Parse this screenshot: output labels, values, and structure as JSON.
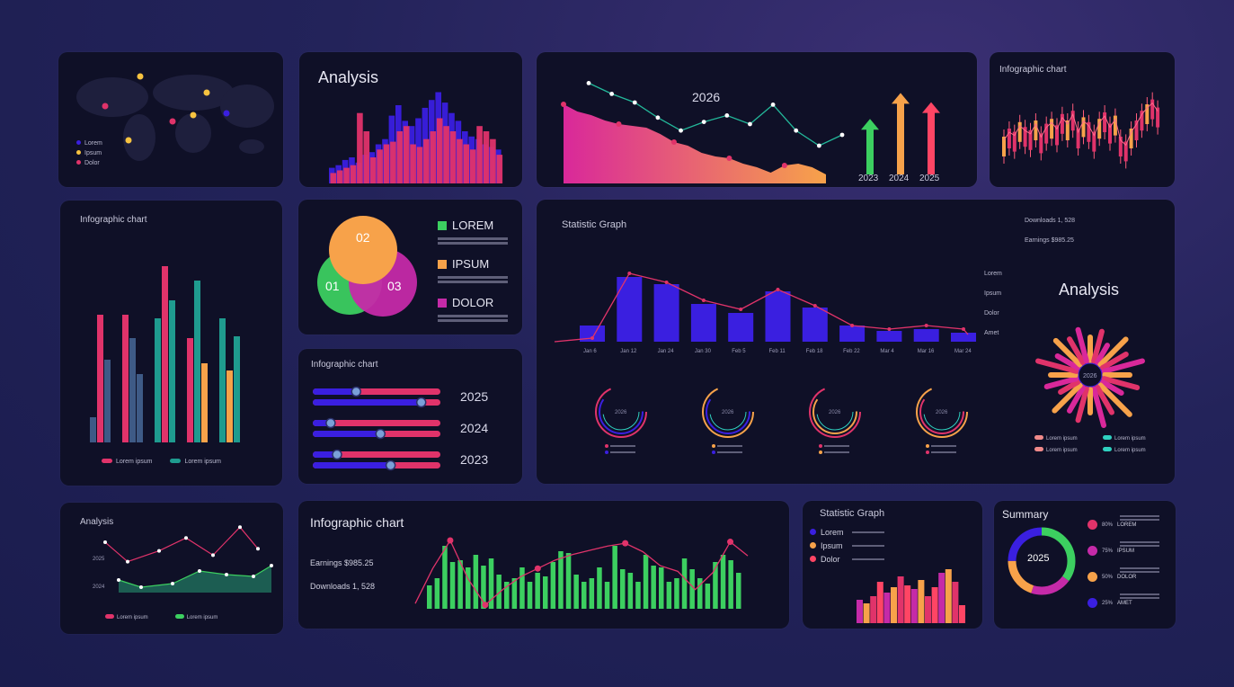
{
  "colors": {
    "pink": "#e0336a",
    "blue": "#3a1fe0",
    "orange": "#f7a24a",
    "green": "#3ccf60",
    "magenta": "#c52aa8",
    "teal": "#1f9b8f",
    "slate": "#3e5a86",
    "red": "#ff4564"
  },
  "map_panel": {
    "legend": [
      "Lorem",
      "Ipsum",
      "Dolor"
    ]
  },
  "analysis_top": {
    "title": "Analysis",
    "chart_data": {
      "type": "bar",
      "series": [
        {
          "color": "blue",
          "values": [
            12,
            14,
            18,
            20,
            16,
            22,
            24,
            30,
            34,
            52,
            60,
            48,
            44,
            50,
            58,
            64,
            70,
            62,
            54,
            48,
            40,
            36,
            34,
            30,
            28,
            26
          ]
        },
        {
          "color": "pink",
          "values": [
            8,
            10,
            12,
            14,
            54,
            40,
            20,
            26,
            30,
            32,
            40,
            44,
            30,
            28,
            34,
            40,
            50,
            44,
            40,
            34,
            30,
            26,
            44,
            40,
            34,
            22
          ]
        }
      ]
    }
  },
  "area_2026": {
    "label": "2026",
    "arrows": [
      {
        "year": "2023",
        "value": 60,
        "color": "green"
      },
      {
        "year": "2024",
        "value": 88,
        "color": "orange"
      },
      {
        "year": "2025",
        "value": 78,
        "color": "red"
      }
    ],
    "chart_data": {
      "type": "area",
      "area": [
        88,
        80,
        76,
        70,
        66,
        64,
        62,
        55,
        46,
        42,
        34,
        30,
        28,
        22,
        18,
        12,
        20,
        22,
        18,
        10
      ],
      "line": [
        88,
        78,
        70,
        56,
        44,
        52,
        58,
        50,
        68,
        44,
        30,
        40
      ]
    }
  },
  "candle_top": {
    "title": "Infographic chart",
    "chart_data": {
      "type": "bar",
      "values": [
        40,
        50,
        46,
        58,
        52,
        48,
        60,
        44,
        56,
        62,
        54,
        68,
        60,
        72,
        50,
        64,
        58,
        46,
        62,
        70,
        56,
        66,
        40,
        34,
        50,
        60,
        72,
        80,
        86,
        76
      ]
    }
  },
  "grouped_bars": {
    "title": "Infographic chart",
    "legend": [
      "Lorem ipsum",
      "Lorem ipsum"
    ],
    "chart_data": {
      "type": "bar",
      "groups": [
        [
          {
            "c": "slate",
            "v": 28
          },
          {
            "c": "pink",
            "v": 142
          },
          {
            "c": "slate",
            "v": 92
          }
        ],
        [
          {
            "c": "pink",
            "v": 142
          },
          {
            "c": "slate",
            "v": 116
          },
          {
            "c": "slate",
            "v": 76
          }
        ],
        [
          {
            "c": "teal",
            "v": 138
          },
          {
            "c": "pink",
            "v": 196
          },
          {
            "c": "teal",
            "v": 158
          }
        ],
        [
          {
            "c": "pink",
            "v": 116
          },
          {
            "c": "teal",
            "v": 180
          },
          {
            "c": "orange",
            "v": 88
          }
        ],
        [
          {
            "c": "teal",
            "v": 138
          },
          {
            "c": "orange",
            "v": 80
          },
          {
            "c": "teal",
            "v": 118
          }
        ]
      ]
    }
  },
  "venn": {
    "circles": [
      {
        "n": "02",
        "color": "orange"
      },
      {
        "n": "01",
        "color": "green"
      },
      {
        "n": "03",
        "color": "magenta"
      }
    ],
    "legend": [
      {
        "label": "LOREM",
        "color": "green"
      },
      {
        "label": "IPSUM",
        "color": "orange"
      },
      {
        "label": "DOLOR",
        "color": "magenta"
      }
    ]
  },
  "sliders": {
    "title": "Infographic chart",
    "rows": [
      {
        "year": "2025",
        "a": 0.34,
        "b": 0.85
      },
      {
        "year": "2024",
        "a": 0.14,
        "b": 0.53
      },
      {
        "year": "2023",
        "a": 0.19,
        "b": 0.61
      }
    ]
  },
  "statistic_big": {
    "title": "Statistic Graph",
    "downloads": "Downloads 1, 528",
    "earnings": "Earnings $985.25",
    "side_labels": [
      "Lorem",
      "Ipsum",
      "Dolor",
      "Amet"
    ],
    "analysis_title": "Analysis",
    "radial_center": "2026",
    "radial_legend": [
      "Lorem ipsum",
      "Lorem ipsum",
      "Lorem ipsum",
      "Lorem ipsum"
    ],
    "chart_data": {
      "type": "bar",
      "categories": [
        "Jan 6",
        "Jan 12",
        "Jan 24",
        "Jan 30",
        "Feb 5",
        "Feb 11",
        "Feb 18",
        "Feb 22",
        "Mar 4",
        "Mar 16",
        "Mar 24"
      ],
      "values": [
        18,
        72,
        64,
        42,
        32,
        56,
        38,
        18,
        12,
        14,
        10
      ],
      "line": [
        4,
        76,
        66,
        46,
        36,
        58,
        40,
        18,
        14,
        18,
        14
      ]
    },
    "donuts": [
      {
        "label": "2026",
        "c1": "pink",
        "c2": "blue"
      },
      {
        "label": "2026",
        "c1": "orange",
        "c2": "blue"
      },
      {
        "label": "2026",
        "c1": "pink",
        "c2": "orange"
      },
      {
        "label": "2026",
        "c1": "orange",
        "c2": "pink"
      }
    ]
  },
  "analysis_bottom": {
    "title": "Analysis",
    "ylabels": [
      "2025",
      "2024"
    ],
    "legend": [
      "Lorem ipsum",
      "Lorem ipsum"
    ],
    "chart_data": {
      "type": "line",
      "line1": [
        30,
        12,
        22,
        34,
        18,
        44,
        24
      ],
      "line2": [
        14,
        6,
        10,
        24,
        20,
        18,
        30
      ]
    }
  },
  "infographic_bottom": {
    "title": "Infographic chart",
    "earnings": "Earnings $985.25",
    "downloads": "Downloads 1, 528",
    "chart_data": {
      "type": "bar",
      "values": [
        26,
        34,
        70,
        52,
        54,
        46,
        60,
        48,
        56,
        38,
        30,
        34,
        46,
        30,
        40,
        36,
        52,
        64,
        62,
        38,
        30,
        34,
        46,
        30,
        70,
        44,
        40,
        30,
        60,
        48,
        46,
        30,
        34,
        56,
        44,
        34,
        28,
        52,
        60,
        54,
        40
      ],
      "line": [
        10,
        60,
        100,
        46,
        8,
        30,
        48,
        60,
        72,
        80,
        86,
        92,
        96,
        84,
        64,
        56,
        30,
        54,
        98,
        78
      ]
    }
  },
  "statistic_small": {
    "title": "Statistic Graph",
    "legend": [
      {
        "label": "Lorem",
        "color": "blue"
      },
      {
        "label": "Ipsum",
        "color": "orange"
      },
      {
        "label": "Dolor",
        "color": "red"
      }
    ],
    "chart_data": {
      "type": "bar",
      "values": [
        26,
        22,
        30,
        46,
        34,
        40,
        52,
        42,
        38,
        48,
        30,
        40,
        56,
        60,
        46,
        20
      ]
    }
  },
  "summary": {
    "title": "Summary",
    "center": "2025",
    "items": [
      {
        "pct": "80%",
        "label": "LOREM",
        "color": "pink"
      },
      {
        "pct": "75%",
        "label": "IPSUM",
        "color": "magenta"
      },
      {
        "pct": "50%",
        "label": "DOLOR",
        "color": "orange"
      },
      {
        "pct": "25%",
        "label": "AMET",
        "color": "blue"
      }
    ]
  }
}
